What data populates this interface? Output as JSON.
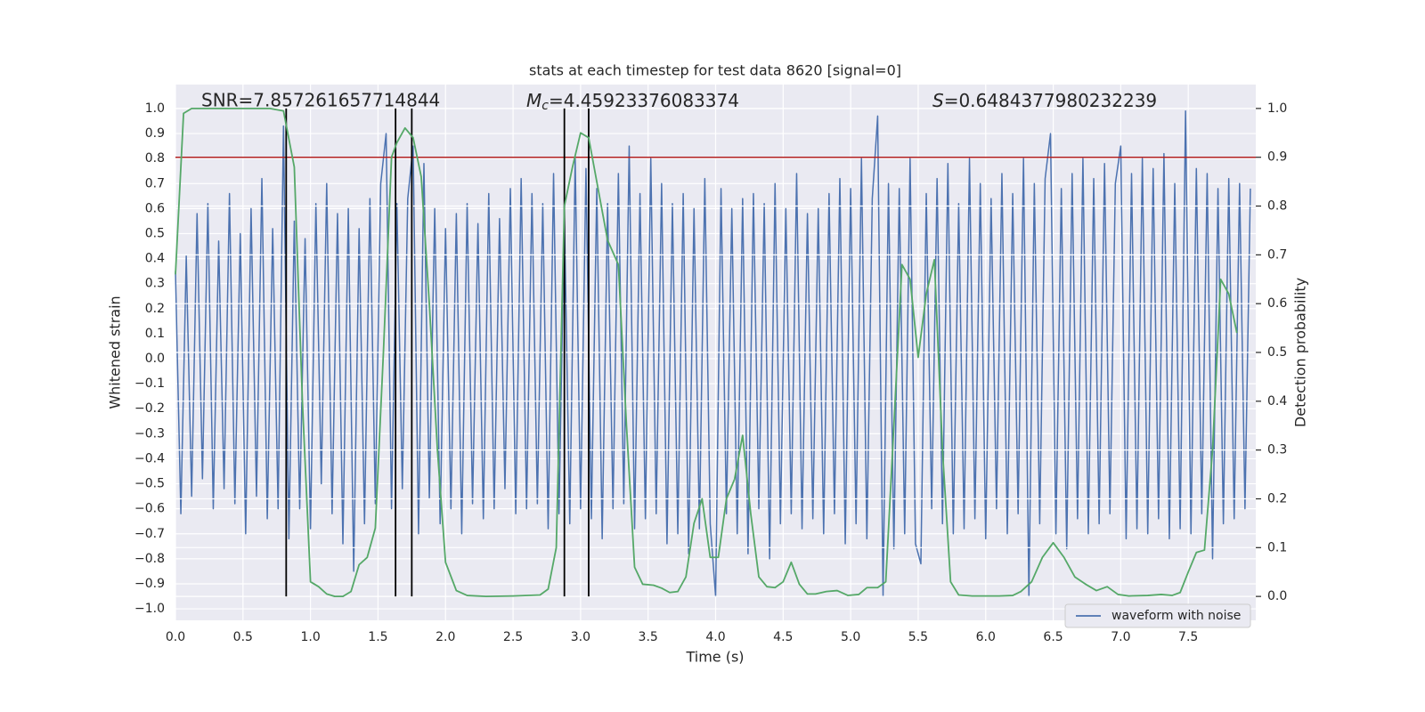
{
  "chart_data": {
    "type": "line",
    "title": "stats at each timestep for test data 8620 [signal=0]",
    "xlabel": "Time (s)",
    "ylabel": "Whitened strain",
    "y2label": "Detection probability",
    "annotations": [
      {
        "text": "SNR=7.857261657714844"
      },
      {
        "symbol": "M",
        "sub": "c",
        "text": "=4.45923376083374"
      },
      {
        "symbol": "S",
        "text": "=0.6484377980232239"
      }
    ],
    "xlim": [
      0,
      8
    ],
    "ylim": [
      -1.046,
      1.096
    ],
    "y2lim": [
      -0.049,
      1.049
    ],
    "grid": true,
    "legend": "lower right",
    "xticks": [
      {
        "value": 0,
        "label": "0.0"
      },
      {
        "value": 0.5,
        "label": "0.5"
      },
      {
        "value": 1,
        "label": "1.0"
      },
      {
        "value": 1.5,
        "label": "1.5"
      },
      {
        "value": 2,
        "label": "2.0"
      },
      {
        "value": 2.5,
        "label": "2.5"
      },
      {
        "value": 3,
        "label": "3.0"
      },
      {
        "value": 3.5,
        "label": "3.5"
      },
      {
        "value": 4,
        "label": "4.0"
      },
      {
        "value": 4.5,
        "label": "4.5"
      },
      {
        "value": 5,
        "label": "5.0"
      },
      {
        "value": 5.5,
        "label": "5.5"
      },
      {
        "value": 6,
        "label": "6.0"
      },
      {
        "value": 6.5,
        "label": "6.5"
      },
      {
        "value": 7,
        "label": "7.0"
      },
      {
        "value": 7.5,
        "label": "7.5"
      }
    ],
    "yticks": [
      {
        "value": -1,
        "label": "−1.0"
      },
      {
        "value": -0.9,
        "label": "−0.9"
      },
      {
        "value": -0.8,
        "label": "−0.8"
      },
      {
        "value": -0.7,
        "label": "−0.7"
      },
      {
        "value": -0.6,
        "label": "−0.6"
      },
      {
        "value": -0.5,
        "label": "−0.5"
      },
      {
        "value": -0.4,
        "label": "−0.4"
      },
      {
        "value": -0.3,
        "label": "−0.3"
      },
      {
        "value": -0.2,
        "label": "−0.2"
      },
      {
        "value": -0.1,
        "label": "−0.1"
      },
      {
        "value": 0,
        "label": "0.0"
      },
      {
        "value": 0.1,
        "label": "0.1"
      },
      {
        "value": 0.2,
        "label": "0.2"
      },
      {
        "value": 0.3,
        "label": "0.3"
      },
      {
        "value": 0.4,
        "label": "0.4"
      },
      {
        "value": 0.5,
        "label": "0.5"
      },
      {
        "value": 0.6,
        "label": "0.6"
      },
      {
        "value": 0.7,
        "label": "0.7"
      },
      {
        "value": 0.8,
        "label": "0.8"
      },
      {
        "value": 0.9,
        "label": "0.9"
      },
      {
        "value": 1,
        "label": "1.0"
      }
    ],
    "y2ticks": [
      {
        "value": 0,
        "label": "0.0"
      },
      {
        "value": 0.1,
        "label": "0.1"
      },
      {
        "value": 0.2,
        "label": "0.2"
      },
      {
        "value": 0.3,
        "label": "0.3"
      },
      {
        "value": 0.4,
        "label": "0.4"
      },
      {
        "value": 0.5,
        "label": "0.5"
      },
      {
        "value": 0.6,
        "label": "0.6"
      },
      {
        "value": 0.7,
        "label": "0.7"
      },
      {
        "value": 0.8,
        "label": "0.8"
      },
      {
        "value": 0.9,
        "label": "0.9"
      },
      {
        "value": 1,
        "label": "1.0"
      }
    ],
    "series": [
      {
        "name": "waveform with noise",
        "color": "#4c72b0",
        "axis": "y",
        "x": [
          0,
          0.04,
          0.08,
          0.12,
          0.16,
          0.2,
          0.24,
          0.28,
          0.32,
          0.36,
          0.4,
          0.44,
          0.48,
          0.52,
          0.56,
          0.6,
          0.64,
          0.68,
          0.72,
          0.76,
          0.8,
          0.84,
          0.88,
          0.92,
          0.96,
          1,
          1.04,
          1.08,
          1.12,
          1.16,
          1.2,
          1.24,
          1.28,
          1.32,
          1.36,
          1.4,
          1.44,
          1.48,
          1.52,
          1.56,
          1.6,
          1.64,
          1.68,
          1.72,
          1.76,
          1.8,
          1.84,
          1.88,
          1.92,
          1.96,
          2,
          2.04,
          2.08,
          2.12,
          2.16,
          2.2,
          2.24,
          2.28,
          2.32,
          2.36,
          2.4,
          2.44,
          2.48,
          2.52,
          2.56,
          2.6,
          2.64,
          2.68,
          2.72,
          2.76,
          2.8,
          2.84,
          2.88,
          2.92,
          2.96,
          3,
          3.04,
          3.08,
          3.12,
          3.16,
          3.2,
          3.24,
          3.28,
          3.32,
          3.36,
          3.4,
          3.44,
          3.48,
          3.52,
          3.56,
          3.6,
          3.64,
          3.68,
          3.72,
          3.76,
          3.8,
          3.84,
          3.88,
          3.92,
          3.96,
          4,
          4.04,
          4.08,
          4.12,
          4.16,
          4.2,
          4.24,
          4.28,
          4.32,
          4.36,
          4.4,
          4.44,
          4.48,
          4.52,
          4.56,
          4.6,
          4.64,
          4.68,
          4.72,
          4.76,
          4.8,
          4.84,
          4.88,
          4.92,
          4.96,
          5,
          5.04,
          5.08,
          5.12,
          5.16,
          5.2,
          5.24,
          5.28,
          5.32,
          5.36,
          5.4,
          5.44,
          5.48,
          5.52,
          5.56,
          5.6,
          5.64,
          5.68,
          5.72,
          5.76,
          5.8,
          5.84,
          5.88,
          5.92,
          5.96,
          6,
          6.04,
          6.08,
          6.12,
          6.16,
          6.2,
          6.24,
          6.28,
          6.32,
          6.36,
          6.4,
          6.44,
          6.48,
          6.52,
          6.56,
          6.6,
          6.64,
          6.68,
          6.72,
          6.76,
          6.8,
          6.84,
          6.88,
          6.92,
          6.96,
          7,
          7.04,
          7.08,
          7.12,
          7.16,
          7.2,
          7.24,
          7.28,
          7.32,
          7.36,
          7.4,
          7.44,
          7.48,
          7.52,
          7.56,
          7.6,
          7.64,
          7.68,
          7.72,
          7.76,
          7.8,
          7.84,
          7.88,
          7.92,
          7.96
        ],
        "values": [
          0.35,
          -0.62,
          0.41,
          -0.55,
          0.58,
          -0.48,
          0.62,
          -0.6,
          0.47,
          -0.52,
          0.66,
          -0.58,
          0.5,
          -0.7,
          0.6,
          -0.55,
          0.72,
          -0.64,
          0.52,
          -0.6,
          0.93,
          -0.72,
          0.55,
          -0.6,
          0.48,
          -0.68,
          0.62,
          -0.5,
          0.7,
          -0.62,
          0.58,
          -0.74,
          0.6,
          -0.85,
          0.52,
          -0.66,
          0.64,
          -0.58,
          0.7,
          0.9,
          -0.6,
          0.62,
          -0.52,
          0.64,
          0.85,
          -0.7,
          0.78,
          -0.56,
          0.6,
          -0.66,
          0.52,
          -0.6,
          0.58,
          -0.7,
          0.62,
          -0.58,
          0.54,
          -0.64,
          0.66,
          -0.6,
          0.56,
          -0.52,
          0.68,
          -0.62,
          0.72,
          -0.6,
          0.66,
          -0.58,
          0.62,
          -0.68,
          0.74,
          -0.62,
          0.58,
          -0.66,
          0.8,
          -0.6,
          0.76,
          -0.64,
          0.68,
          -0.72,
          0.62,
          -0.6,
          0.74,
          -0.58,
          0.85,
          -0.68,
          0.66,
          -0.64,
          0.8,
          -0.62,
          0.7,
          -0.74,
          0.62,
          -0.7,
          0.66,
          -0.78,
          0.6,
          -0.68,
          0.72,
          -0.66,
          -0.95,
          0.68,
          -0.62,
          0.6,
          -0.7,
          0.64,
          -0.78,
          0.66,
          -0.6,
          0.62,
          -0.8,
          0.7,
          -0.66,
          0.6,
          -0.62,
          0.74,
          -0.68,
          0.58,
          -0.64,
          0.6,
          -0.7,
          0.66,
          -0.62,
          0.72,
          -0.74,
          0.68,
          -0.66,
          0.8,
          -0.72,
          0.64,
          0.97,
          -0.95,
          0.7,
          -0.76,
          0.68,
          -0.7,
          0.8,
          -0.74,
          -0.82,
          0.66,
          -0.6,
          0.72,
          -0.66,
          0.78,
          -0.7,
          0.62,
          -0.68,
          0.8,
          -0.64,
          0.7,
          -0.72,
          0.64,
          -0.6,
          0.74,
          -0.7,
          0.66,
          -0.62,
          0.8,
          -0.95,
          0.7,
          -0.66,
          0.72,
          0.9,
          -0.7,
          0.68,
          -0.76,
          0.74,
          -0.64,
          0.8,
          -0.7,
          0.72,
          -0.66,
          0.78,
          -0.62,
          0.7,
          0.85,
          -0.72,
          0.74,
          -0.68,
          0.8,
          -0.7,
          0.76,
          -0.64,
          0.82,
          -0.72,
          0.7,
          -0.68,
          0.99,
          -0.7,
          0.76,
          -0.62,
          0.74,
          -0.8,
          0.68,
          -0.66,
          0.72,
          -0.64,
          0.7,
          -0.6,
          0.68
        ]
      },
      {
        "color": "#55a868",
        "axis": "y2",
        "x": [
          0,
          0.06,
          0.12,
          0.3,
          0.5,
          0.7,
          0.8,
          0.88,
          0.94,
          1,
          1.06,
          1.12,
          1.18,
          1.24,
          1.3,
          1.36,
          1.42,
          1.48,
          1.54,
          1.6,
          1.64,
          1.7,
          1.76,
          1.82,
          1.88,
          1.94,
          2,
          2.08,
          2.16,
          2.3,
          2.5,
          2.7,
          2.76,
          2.82,
          2.88,
          2.94,
          3,
          3.06,
          3.12,
          3.2,
          3.28,
          3.34,
          3.4,
          3.46,
          3.54,
          3.6,
          3.66,
          3.72,
          3.78,
          3.84,
          3.9,
          3.96,
          4.02,
          4.08,
          4.14,
          4.2,
          4.26,
          4.32,
          4.38,
          4.44,
          4.5,
          4.56,
          4.62,
          4.68,
          4.74,
          4.82,
          4.9,
          4.98,
          5.06,
          5.12,
          5.2,
          5.26,
          5.32,
          5.38,
          5.44,
          5.5,
          5.56,
          5.62,
          5.68,
          5.74,
          5.8,
          5.9,
          6.1,
          6.2,
          6.26,
          6.34,
          6.42,
          6.5,
          6.58,
          6.66,
          6.74,
          6.82,
          6.9,
          6.98,
          7.06,
          7.2,
          7.3,
          7.38,
          7.44,
          7.5,
          7.56,
          7.62,
          7.68,
          7.74,
          7.8,
          7.86
        ],
        "values": [
          0.66,
          0.99,
          1,
          1,
          1,
          1,
          0.995,
          0.88,
          0.4,
          0.03,
          0.02,
          0.005,
          0,
          0,
          0.01,
          0.065,
          0.08,
          0.14,
          0.5,
          0.9,
          0.93,
          0.96,
          0.94,
          0.86,
          0.6,
          0.3,
          0.07,
          0.012,
          0.002,
          0,
          0.001,
          0.003,
          0.015,
          0.1,
          0.8,
          0.88,
          0.95,
          0.94,
          0.85,
          0.73,
          0.68,
          0.35,
          0.06,
          0.025,
          0.023,
          0.017,
          0.008,
          0.01,
          0.04,
          0.15,
          0.2,
          0.08,
          0.08,
          0.2,
          0.24,
          0.33,
          0.17,
          0.04,
          0.02,
          0.018,
          0.03,
          0.07,
          0.025,
          0.005,
          0.005,
          0.01,
          0.012,
          0.002,
          0.004,
          0.018,
          0.018,
          0.03,
          0.35,
          0.68,
          0.65,
          0.49,
          0.62,
          0.69,
          0.3,
          0.03,
          0.003,
          0.001,
          0.001,
          0.002,
          0.01,
          0.03,
          0.08,
          0.11,
          0.08,
          0.04,
          0.025,
          0.012,
          0.02,
          0.004,
          0.001,
          0.002,
          0.004,
          0.002,
          0.008,
          0.05,
          0.09,
          0.095,
          0.3,
          0.65,
          0.62,
          0.54
        ]
      }
    ],
    "hlines": [
      {
        "value": 0.9,
        "axis": "y2",
        "color": "#b22222"
      }
    ],
    "vlines": {
      "x": [
        0.82,
        1.63,
        1.75,
        2.88,
        3.06
      ],
      "ymin": 0,
      "ymax": 1,
      "axis": "y2",
      "color": "#000000"
    }
  }
}
